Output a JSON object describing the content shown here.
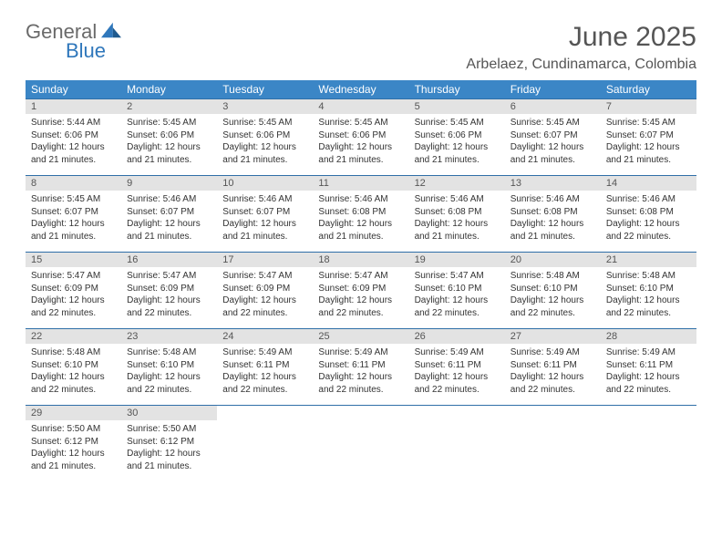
{
  "brand": {
    "part1": "General",
    "part2": "Blue"
  },
  "title": "June 2025",
  "location": "Arbelaez, Cundinamarca, Colombia",
  "colors": {
    "header_bg": "#3b86c6",
    "header_text": "#ffffff",
    "daynum_bg": "#e3e3e3",
    "border": "#2f6fa8",
    "title_color": "#555555",
    "brand_grey": "#6a6a6a",
    "brand_blue": "#2f77bb"
  },
  "weekdays": [
    "Sunday",
    "Monday",
    "Tuesday",
    "Wednesday",
    "Thursday",
    "Friday",
    "Saturday"
  ],
  "days": [
    {
      "n": "1",
      "sr": "5:44 AM",
      "ss": "6:06 PM",
      "dl": "12 hours and 21 minutes."
    },
    {
      "n": "2",
      "sr": "5:45 AM",
      "ss": "6:06 PM",
      "dl": "12 hours and 21 minutes."
    },
    {
      "n": "3",
      "sr": "5:45 AM",
      "ss": "6:06 PM",
      "dl": "12 hours and 21 minutes."
    },
    {
      "n": "4",
      "sr": "5:45 AM",
      "ss": "6:06 PM",
      "dl": "12 hours and 21 minutes."
    },
    {
      "n": "5",
      "sr": "5:45 AM",
      "ss": "6:06 PM",
      "dl": "12 hours and 21 minutes."
    },
    {
      "n": "6",
      "sr": "5:45 AM",
      "ss": "6:07 PM",
      "dl": "12 hours and 21 minutes."
    },
    {
      "n": "7",
      "sr": "5:45 AM",
      "ss": "6:07 PM",
      "dl": "12 hours and 21 minutes."
    },
    {
      "n": "8",
      "sr": "5:45 AM",
      "ss": "6:07 PM",
      "dl": "12 hours and 21 minutes."
    },
    {
      "n": "9",
      "sr": "5:46 AM",
      "ss": "6:07 PM",
      "dl": "12 hours and 21 minutes."
    },
    {
      "n": "10",
      "sr": "5:46 AM",
      "ss": "6:07 PM",
      "dl": "12 hours and 21 minutes."
    },
    {
      "n": "11",
      "sr": "5:46 AM",
      "ss": "6:08 PM",
      "dl": "12 hours and 21 minutes."
    },
    {
      "n": "12",
      "sr": "5:46 AM",
      "ss": "6:08 PM",
      "dl": "12 hours and 21 minutes."
    },
    {
      "n": "13",
      "sr": "5:46 AM",
      "ss": "6:08 PM",
      "dl": "12 hours and 21 minutes."
    },
    {
      "n": "14",
      "sr": "5:46 AM",
      "ss": "6:08 PM",
      "dl": "12 hours and 22 minutes."
    },
    {
      "n": "15",
      "sr": "5:47 AM",
      "ss": "6:09 PM",
      "dl": "12 hours and 22 minutes."
    },
    {
      "n": "16",
      "sr": "5:47 AM",
      "ss": "6:09 PM",
      "dl": "12 hours and 22 minutes."
    },
    {
      "n": "17",
      "sr": "5:47 AM",
      "ss": "6:09 PM",
      "dl": "12 hours and 22 minutes."
    },
    {
      "n": "18",
      "sr": "5:47 AM",
      "ss": "6:09 PM",
      "dl": "12 hours and 22 minutes."
    },
    {
      "n": "19",
      "sr": "5:47 AM",
      "ss": "6:10 PM",
      "dl": "12 hours and 22 minutes."
    },
    {
      "n": "20",
      "sr": "5:48 AM",
      "ss": "6:10 PM",
      "dl": "12 hours and 22 minutes."
    },
    {
      "n": "21",
      "sr": "5:48 AM",
      "ss": "6:10 PM",
      "dl": "12 hours and 22 minutes."
    },
    {
      "n": "22",
      "sr": "5:48 AM",
      "ss": "6:10 PM",
      "dl": "12 hours and 22 minutes."
    },
    {
      "n": "23",
      "sr": "5:48 AM",
      "ss": "6:10 PM",
      "dl": "12 hours and 22 minutes."
    },
    {
      "n": "24",
      "sr": "5:49 AM",
      "ss": "6:11 PM",
      "dl": "12 hours and 22 minutes."
    },
    {
      "n": "25",
      "sr": "5:49 AM",
      "ss": "6:11 PM",
      "dl": "12 hours and 22 minutes."
    },
    {
      "n": "26",
      "sr": "5:49 AM",
      "ss": "6:11 PM",
      "dl": "12 hours and 22 minutes."
    },
    {
      "n": "27",
      "sr": "5:49 AM",
      "ss": "6:11 PM",
      "dl": "12 hours and 22 minutes."
    },
    {
      "n": "28",
      "sr": "5:49 AM",
      "ss": "6:11 PM",
      "dl": "12 hours and 22 minutes."
    },
    {
      "n": "29",
      "sr": "5:50 AM",
      "ss": "6:12 PM",
      "dl": "12 hours and 21 minutes."
    },
    {
      "n": "30",
      "sr": "5:50 AM",
      "ss": "6:12 PM",
      "dl": "12 hours and 21 minutes."
    }
  ],
  "labels": {
    "sunrise": "Sunrise:",
    "sunset": "Sunset:",
    "daylight": "Daylight:"
  }
}
